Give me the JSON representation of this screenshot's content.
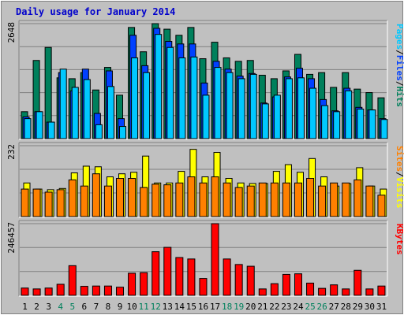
{
  "chart_data": {
    "type": "bar",
    "title": "Daily usage for January 2014",
    "colors": {
      "background": "#c0c0c0",
      "panel": "#c0c0c0",
      "hits": "#00805c",
      "files": "#0040ff",
      "pages": "#00c8ff",
      "visits": "#ffff00",
      "sites": "#ff8000",
      "kbytes": "#ff0000",
      "weekend_label": "#00805c",
      "weekday_label": "#000000",
      "title": "#0000cc"
    },
    "categories": [
      "1",
      "2",
      "3",
      "4",
      "5",
      "6",
      "7",
      "8",
      "9",
      "10",
      "11",
      "12",
      "13",
      "14",
      "15",
      "16",
      "17",
      "18",
      "19",
      "20",
      "21",
      "22",
      "23",
      "24",
      "25",
      "26",
      "27",
      "28",
      "29",
      "30",
      "31"
    ],
    "weekend_days": [
      "4",
      "5",
      "11",
      "12",
      "18",
      "19",
      "25",
      "26"
    ],
    "panels": [
      {
        "name": "hits-files-pages",
        "max_label": "2648",
        "ymax": 2648,
        "side_labels": [
          "Pages",
          "/",
          "Files",
          "/",
          "Hits"
        ],
        "side_label_colors": [
          "#00c8ff",
          "#000000",
          "#0040ff",
          "#000000",
          "#00805c"
        ],
        "series": [
          {
            "name": "Hits",
            "values": [
              620,
              1800,
              2100,
              1400,
              1380,
              1520,
              1120,
              1640,
              1000,
              2560,
              2000,
              2648,
              2520,
              2380,
              2560,
              1840,
              2220,
              1860,
              1780,
              1800,
              1460,
              1380,
              1560,
              1940,
              1480,
              1520,
              1180,
              1520,
              1140,
              1060,
              940
            ]
          },
          {
            "name": "Files",
            "values": [
              500,
              620,
              380,
              1520,
              1100,
              1600,
              580,
              1560,
              460,
              2380,
              1680,
              2540,
              2240,
              2180,
              2180,
              1280,
              1780,
              1600,
              1440,
              1500,
              820,
              960,
              1420,
              1620,
              1380,
              900,
              640,
              1160,
              720,
              660,
              460
            ]
          },
          {
            "name": "Pages",
            "values": [
              460,
              620,
              380,
              1600,
              1180,
              1360,
              320,
              1200,
              280,
              1860,
              1520,
              2400,
              2100,
              1860,
              1880,
              1000,
              1640,
              1520,
              1380,
              1480,
              800,
              1000,
              1380,
              1400,
              1160,
              760,
              620,
              1100,
              680,
              660,
              440
            ]
          }
        ]
      },
      {
        "name": "visits-sites",
        "max_label": "232",
        "ymax": 232,
        "side_labels": [
          "Sites",
          "/",
          "Visits"
        ],
        "side_label_colors": [
          "#ff8000",
          "#000000",
          "#ffff00"
        ],
        "series": [
          {
            "name": "Visits",
            "values": [
              110,
              90,
              88,
              92,
              143,
              165,
              163,
              130,
              140,
              145,
              198,
              110,
              110,
              148,
              220,
              130,
              210,
              125,
              110,
              108,
              108,
              148,
              170,
              145,
              190,
              130,
              100,
              108,
              160,
              100,
              90
            ]
          },
          {
            "name": "Sites",
            "values": [
              90,
              90,
              80,
              88,
              120,
              100,
              140,
              100,
              125,
              125,
              95,
              106,
              104,
              110,
              130,
              110,
              130,
              110,
              95,
              100,
              110,
              110,
              110,
              110,
              125,
              100,
              110,
              110,
              120,
              100,
              70
            ]
          }
        ]
      },
      {
        "name": "kbytes",
        "max_label": "246457",
        "ymax": 246457,
        "side_labels": [
          "KBytes"
        ],
        "side_label_colors": [
          "#ff0000"
        ],
        "series": [
          {
            "name": "KBytes",
            "values": [
              25000,
              22000,
              25000,
              38000,
              102000,
              31000,
              32000,
              32000,
              28000,
              76000,
              78000,
              150000,
              165000,
              130000,
              125000,
              58000,
              246457,
              125000,
              106000,
              100000,
              22000,
              40000,
              72000,
              74000,
              42000,
              24000,
              36000,
              22000,
              86000,
              22000,
              32000
            ]
          }
        ]
      }
    ]
  }
}
